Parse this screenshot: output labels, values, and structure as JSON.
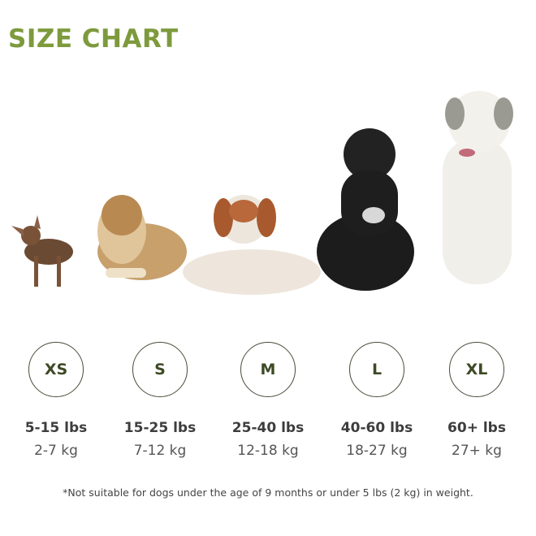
{
  "title": "SIZE CHART",
  "colors": {
    "title": "#7d9a3c",
    "size_label": "#3d4a25"
  },
  "sizes": [
    {
      "label": "XS",
      "lbs": "5-15 lbs",
      "kg": "2-7 kg",
      "image": "chihuahua-dog"
    },
    {
      "label": "S",
      "lbs": "15-25 lbs",
      "kg": "7-12 kg",
      "image": "collie-dog"
    },
    {
      "label": "M",
      "lbs": "25-40 lbs",
      "kg": "12-18 kg",
      "image": "brittany-dog"
    },
    {
      "label": "L",
      "lbs": "40-60 lbs",
      "kg": "18-27 kg",
      "image": "black-doodle-dog"
    },
    {
      "label": "XL",
      "lbs": "60+ lbs",
      "kg": "27+ kg",
      "image": "pyrenees-dog"
    }
  ],
  "note": "*Not suitable for dogs under the age of 9 months or under 5 lbs (2 kg) in weight."
}
